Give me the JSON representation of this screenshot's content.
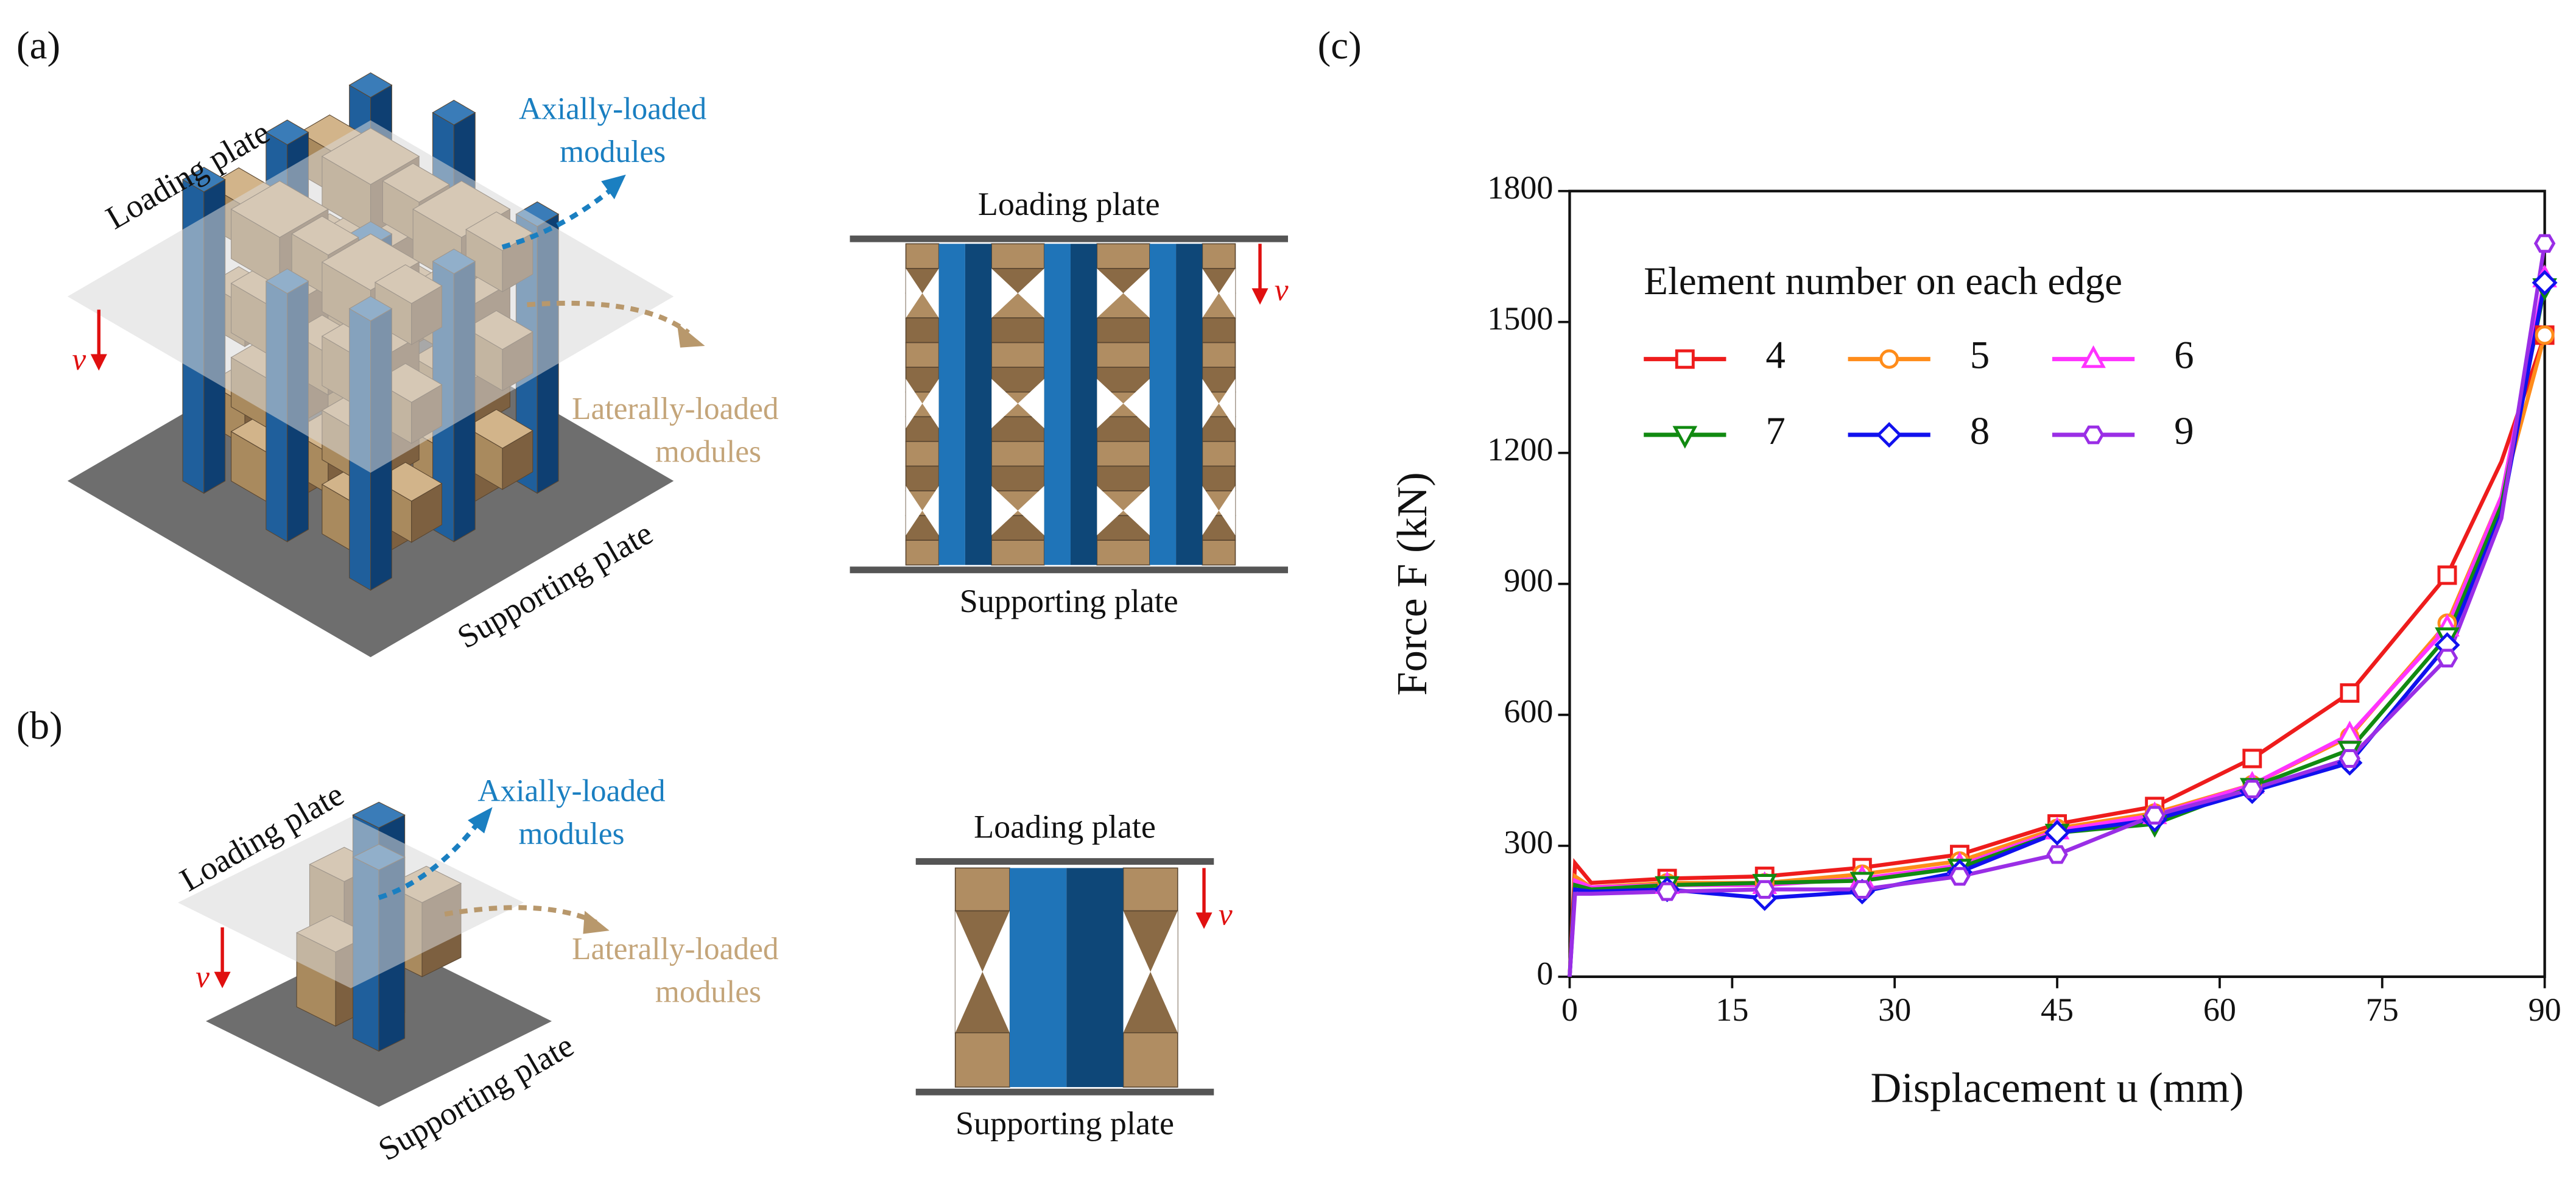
{
  "panels": {
    "a": {
      "label": "(a)",
      "iso": {
        "loading_plate": "Loading plate",
        "axial": [
          "Axially-loaded",
          "modules"
        ],
        "lateral": [
          "Laterally-loaded",
          "modules"
        ],
        "supporting_plate": "Supporting plate",
        "v": "v"
      },
      "front": {
        "loading_plate": "Loading plate",
        "supporting_plate": "Supporting plate",
        "v": "v"
      }
    },
    "b": {
      "label": "(b)",
      "iso": {
        "loading_plate": "Loading plate",
        "axial": [
          "Axially-loaded",
          "modules"
        ],
        "lateral": [
          "Laterally-loaded",
          "modules"
        ],
        "supporting_plate": "Supporting plate",
        "v": "v"
      },
      "front": {
        "loading_plate": "Loading plate",
        "supporting_plate": "Supporting plate",
        "v": "v"
      }
    },
    "c": {
      "label": "(c)"
    }
  },
  "chart_data": {
    "type": "line",
    "legend_title": "Element number on each edge",
    "x_label": "Displacement u (mm)",
    "y_label": "Force F (kN)",
    "x": [
      0,
      0.5,
      2,
      9,
      18,
      27,
      36,
      45,
      54,
      63,
      72,
      81,
      86,
      90
    ],
    "series": [
      {
        "name": "4",
        "color": "#ee1c1c",
        "marker": "square",
        "values": [
          0,
          260,
          215,
          225,
          230,
          250,
          280,
          350,
          390,
          500,
          650,
          920,
          1180,
          1470
        ]
      },
      {
        "name": "5",
        "color": "#ff8c1a",
        "marker": "circle",
        "values": [
          0,
          230,
          205,
          215,
          215,
          235,
          265,
          340,
          375,
          440,
          550,
          810,
          1100,
          1470
        ]
      },
      {
        "name": "6",
        "color": "#ff33ff",
        "marker": "triangle-up",
        "values": [
          0,
          220,
          205,
          210,
          210,
          225,
          255,
          335,
          370,
          440,
          555,
          800,
          1100,
          1600
        ]
      },
      {
        "name": "7",
        "color": "#118a11",
        "marker": "triangle-down",
        "values": [
          0,
          210,
          200,
          210,
          215,
          220,
          250,
          330,
          350,
          435,
          520,
          780,
          1080,
          1580
        ]
      },
      {
        "name": "8",
        "color": "#1111ee",
        "marker": "diamond",
        "values": [
          0,
          200,
          195,
          200,
          180,
          195,
          240,
          330,
          360,
          425,
          490,
          760,
          1060,
          1590
        ]
      },
      {
        "name": "9",
        "color": "#9a2ee6",
        "marker": "hexagon",
        "values": [
          0,
          190,
          190,
          195,
          200,
          200,
          230,
          280,
          370,
          430,
          500,
          730,
          1050,
          1680
        ]
      }
    ],
    "xlim": [
      0,
      90
    ],
    "ylim": [
      0,
      1800
    ],
    "xticks": [
      0,
      15,
      30,
      45,
      60,
      75,
      90
    ],
    "yticks": [
      0,
      300,
      600,
      900,
      1200,
      1500,
      1800
    ],
    "grid": false
  }
}
